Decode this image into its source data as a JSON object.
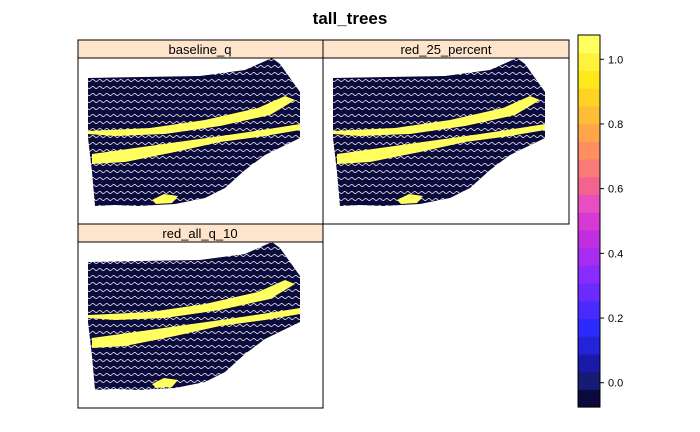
{
  "chart_data": {
    "type": "heatmap",
    "title": "tall_trees",
    "panels": [
      {
        "name": "baseline_q"
      },
      {
        "name": "red_25_percent"
      },
      {
        "name": "red_all_q_10"
      }
    ],
    "colorbar": {
      "ticks": [
        "0.0",
        "0.2",
        "0.4",
        "0.6",
        "0.8",
        "1.0"
      ],
      "tick_values": [
        0.0,
        0.2,
        0.4,
        0.6,
        0.8,
        1.0
      ],
      "range": [
        -0.075,
        1.075
      ],
      "colors": [
        "#0b0a3c",
        "#161b73",
        "#1a1aa8",
        "#2323d8",
        "#2b2bff",
        "#4a2bff",
        "#6a2bff",
        "#8a2bff",
        "#a82bf0",
        "#c02ee0",
        "#d63ad4",
        "#e84ec0",
        "#f2648f",
        "#fa7a78",
        "#ff8f60",
        "#ffa64a",
        "#ffbd35",
        "#ffd324",
        "#ffe81a",
        "#fff23a",
        "#ffff60"
      ]
    },
    "value_classes": [
      0,
      1
    ],
    "legend_position": "right"
  }
}
